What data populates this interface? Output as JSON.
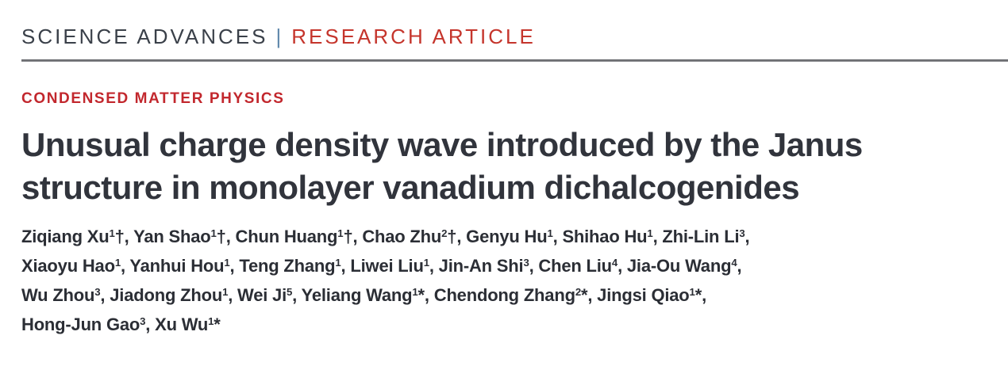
{
  "masthead": {
    "journal": "SCIENCE ADVANCES",
    "separator": "|",
    "article_type": "RESEARCH ARTICLE"
  },
  "article": {
    "section": "CONDENSED MATTER PHYSICS",
    "title_lines": [
      "Unusual charge density wave introduced by the Janus",
      "structure in monolayer vanadium dichalcogenides"
    ]
  },
  "authors": {
    "lines": [
      {
        "trailing_comma": true,
        "names": [
          {
            "name": "Ziqiang Xu",
            "sup": "1",
            "mark": "†"
          },
          {
            "name": "Yan Shao",
            "sup": "1",
            "mark": "†"
          },
          {
            "name": "Chun Huang",
            "sup": "1",
            "mark": "†"
          },
          {
            "name": "Chao Zhu",
            "sup": "2",
            "mark": "†"
          },
          {
            "name": "Genyu Hu",
            "sup": "1",
            "mark": ""
          },
          {
            "name": "Shihao Hu",
            "sup": "1",
            "mark": ""
          },
          {
            "name": "Zhi-Lin Li",
            "sup": "3",
            "mark": ""
          }
        ]
      },
      {
        "trailing_comma": true,
        "names": [
          {
            "name": "Xiaoyu Hao",
            "sup": "1",
            "mark": ""
          },
          {
            "name": "Yanhui Hou",
            "sup": "1",
            "mark": ""
          },
          {
            "name": "Teng Zhang",
            "sup": "1",
            "mark": ""
          },
          {
            "name": "Liwei Liu",
            "sup": "1",
            "mark": ""
          },
          {
            "name": "Jin-An Shi",
            "sup": "3",
            "mark": ""
          },
          {
            "name": "Chen Liu",
            "sup": "4",
            "mark": ""
          },
          {
            "name": "Jia-Ou Wang",
            "sup": "4",
            "mark": ""
          }
        ]
      },
      {
        "trailing_comma": true,
        "names": [
          {
            "name": "Wu Zhou",
            "sup": "3",
            "mark": ""
          },
          {
            "name": "Jiadong Zhou",
            "sup": "1",
            "mark": ""
          },
          {
            "name": "Wei Ji",
            "sup": "5",
            "mark": ""
          },
          {
            "name": "Yeliang Wang",
            "sup": "1",
            "mark": "*"
          },
          {
            "name": "Chendong Zhang",
            "sup": "2",
            "mark": "*"
          },
          {
            "name": "Jingsi Qiao",
            "sup": "1",
            "mark": "*"
          }
        ]
      },
      {
        "trailing_comma": false,
        "names": [
          {
            "name": "Hong-Jun Gao",
            "sup": "3",
            "mark": ""
          },
          {
            "name": "Xu Wu",
            "sup": "1",
            "mark": "*"
          }
        ]
      }
    ]
  },
  "colors": {
    "journal_text": "#3a4049",
    "separator": "#5e87ab",
    "article_type_red": "#c5352c",
    "section_red": "#c2272d",
    "title_text": "#31343c",
    "author_text": "#2b2e35",
    "rule_gray": "#6f7073"
  }
}
